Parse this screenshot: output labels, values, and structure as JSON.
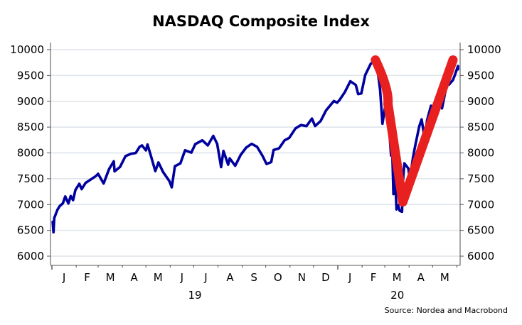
{
  "chart_data": {
    "type": "line",
    "title": "NASDAQ Composite Index",
    "xlabel": "",
    "ylabel": "",
    "ylim": [
      5900,
      10150
    ],
    "yticks": [
      6000,
      6500,
      7000,
      7500,
      8000,
      8500,
      9000,
      9500,
      10000
    ],
    "ytick_labels": [
      "6000",
      "6500",
      "7000",
      "7500",
      "8000",
      "8500",
      "9000",
      "9500",
      "10000"
    ],
    "secondary_y_axis": true,
    "grid": "horizontal",
    "x_range": [
      "2019-01-01",
      "2020-05-31"
    ],
    "month_labels": [
      "J",
      "F",
      "M",
      "A",
      "M",
      "J",
      "J",
      "A",
      "S",
      "O",
      "N",
      "D",
      "J",
      "F",
      "M",
      "A",
      "M"
    ],
    "year_labels": [
      {
        "label": "19",
        "year": 2019
      },
      {
        "label": "20",
        "year": 2020
      }
    ],
    "series": [
      {
        "name": "NASDAQ Composite",
        "color": "#00009e",
        "points": [
          [
            "2019-01-02",
            6665
          ],
          [
            "2019-01-03",
            6463
          ],
          [
            "2019-01-04",
            6739
          ],
          [
            "2019-01-08",
            6897
          ],
          [
            "2019-01-11",
            6971
          ],
          [
            "2019-01-15",
            7024
          ],
          [
            "2019-01-18",
            7157
          ],
          [
            "2019-01-22",
            7021
          ],
          [
            "2019-01-25",
            7165
          ],
          [
            "2019-01-28",
            7085
          ],
          [
            "2019-01-31",
            7282
          ],
          [
            "2019-02-05",
            7402
          ],
          [
            "2019-02-08",
            7298
          ],
          [
            "2019-02-13",
            7420
          ],
          [
            "2019-02-20",
            7489
          ],
          [
            "2019-02-26",
            7550
          ],
          [
            "2019-03-01",
            7595
          ],
          [
            "2019-03-08",
            7408
          ],
          [
            "2019-03-15",
            7688
          ],
          [
            "2019-03-21",
            7838
          ],
          [
            "2019-03-22",
            7643
          ],
          [
            "2019-03-29",
            7729
          ],
          [
            "2019-04-05",
            7939
          ],
          [
            "2019-04-12",
            7984
          ],
          [
            "2019-04-18",
            7998
          ],
          [
            "2019-04-23",
            8120
          ],
          [
            "2019-04-26",
            8146
          ],
          [
            "2019-05-01",
            8049
          ],
          [
            "2019-05-03",
            8164
          ],
          [
            "2019-05-07",
            7963
          ],
          [
            "2019-05-13",
            7647
          ],
          [
            "2019-05-17",
            7816
          ],
          [
            "2019-05-23",
            7628
          ],
          [
            "2019-05-31",
            7453
          ],
          [
            "2019-06-03",
            7333
          ],
          [
            "2019-06-07",
            7742
          ],
          [
            "2019-06-14",
            7797
          ],
          [
            "2019-06-20",
            8051
          ],
          [
            "2019-06-28",
            8006
          ],
          [
            "2019-07-03",
            8170
          ],
          [
            "2019-07-12",
            8244
          ],
          [
            "2019-07-19",
            8146
          ],
          [
            "2019-07-26",
            8330
          ],
          [
            "2019-07-31",
            8175
          ],
          [
            "2019-08-05",
            7726
          ],
          [
            "2019-08-08",
            8039
          ],
          [
            "2019-08-14",
            7773
          ],
          [
            "2019-08-16",
            7895
          ],
          [
            "2019-08-23",
            7751
          ],
          [
            "2019-08-30",
            7962
          ],
          [
            "2019-09-06",
            8103
          ],
          [
            "2019-09-13",
            8176
          ],
          [
            "2019-09-20",
            8117
          ],
          [
            "2019-09-27",
            7940
          ],
          [
            "2019-10-02",
            7785
          ],
          [
            "2019-10-08",
            7823
          ],
          [
            "2019-10-11",
            8057
          ],
          [
            "2019-10-18",
            8089
          ],
          [
            "2019-10-25",
            8243
          ],
          [
            "2019-10-31",
            8292
          ],
          [
            "2019-11-08",
            8475
          ],
          [
            "2019-11-15",
            8540
          ],
          [
            "2019-11-22",
            8520
          ],
          [
            "2019-11-29",
            8665
          ],
          [
            "2019-12-03",
            8521
          ],
          [
            "2019-12-10",
            8616
          ],
          [
            "2019-12-17",
            8823
          ],
          [
            "2019-12-27",
            9006
          ],
          [
            "2019-12-31",
            8973
          ],
          [
            "2020-01-03",
            9020
          ],
          [
            "2020-01-10",
            9179
          ],
          [
            "2020-01-17",
            9389
          ],
          [
            "2020-01-24",
            9315
          ],
          [
            "2020-01-27",
            9139
          ],
          [
            "2020-01-31",
            9151
          ],
          [
            "2020-02-05",
            9509
          ],
          [
            "2020-02-12",
            9726
          ],
          [
            "2020-02-19",
            9817
          ],
          [
            "2020-02-24",
            9221
          ],
          [
            "2020-02-27",
            8566
          ],
          [
            "2020-03-02",
            8952
          ],
          [
            "2020-03-06",
            8576
          ],
          [
            "2020-03-09",
            7950
          ],
          [
            "2020-03-10",
            8344
          ],
          [
            "2020-03-12",
            7201
          ],
          [
            "2020-03-13",
            7875
          ],
          [
            "2020-03-16",
            6905
          ],
          [
            "2020-03-18",
            6989
          ],
          [
            "2020-03-20",
            6880
          ],
          [
            "2020-03-23",
            6860
          ],
          [
            "2020-03-24",
            7418
          ],
          [
            "2020-03-26",
            7798
          ],
          [
            "2020-03-31",
            7700
          ],
          [
            "2020-04-02",
            7487
          ],
          [
            "2020-04-06",
            7913
          ],
          [
            "2020-04-09",
            8153
          ],
          [
            "2020-04-14",
            8516
          ],
          [
            "2020-04-17",
            8650
          ],
          [
            "2020-04-21",
            8263
          ],
          [
            "2020-04-24",
            8634
          ],
          [
            "2020-04-29",
            8915
          ],
          [
            "2020-05-01",
            8605
          ],
          [
            "2020-05-08",
            9121
          ],
          [
            "2020-05-13",
            8863
          ],
          [
            "2020-05-15",
            9014
          ],
          [
            "2020-05-20",
            9375
          ],
          [
            "2020-05-22",
            9324
          ],
          [
            "2020-05-27",
            9412
          ],
          [
            "2020-05-29",
            9490
          ],
          [
            "2020-06-03",
            9683
          ],
          [
            "2020-06-05",
            9620
          ]
        ]
      }
    ],
    "annotations": [
      {
        "type": "hand-drawn V shape",
        "color": "#e8201f",
        "points": [
          [
            "2020-02-18",
            9800
          ],
          [
            "2020-03-05",
            8950
          ],
          [
            "2020-03-24",
            7050
          ],
          [
            "2020-06-02",
            9800
          ]
        ]
      }
    ],
    "source": "Source: Nordea and Macrobond"
  }
}
